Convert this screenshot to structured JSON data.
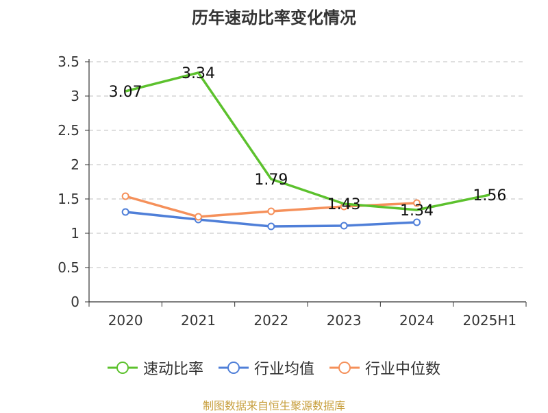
{
  "chart_data": {
    "type": "line",
    "title": "历年速动比率变化情况",
    "categories": [
      "2020",
      "2021",
      "2022",
      "2023",
      "2024",
      "2025H1"
    ],
    "series": [
      {
        "name": "速动比率",
        "color": "#5cc12d",
        "values": [
          3.07,
          3.34,
          1.79,
          1.43,
          1.34,
          1.56
        ],
        "labels": [
          "3.07",
          "3.34",
          "1.79",
          "1.43",
          "1.34",
          "1.56"
        ]
      },
      {
        "name": "行业均值",
        "color": "#4f7fd8",
        "values": [
          1.31,
          1.2,
          1.1,
          1.11,
          1.16,
          null
        ]
      },
      {
        "name": "行业中位数",
        "color": "#f5905a",
        "values": [
          1.54,
          1.24,
          1.32,
          1.39,
          1.44,
          null
        ]
      }
    ],
    "yticks": [
      "0",
      "0.5",
      "1",
      "1.5",
      "2",
      "2.5",
      "3",
      "3.5"
    ],
    "ylim": [
      0,
      3.5
    ],
    "grid": true,
    "legend_position": "bottom"
  },
  "footer": {
    "source": "制图数据来自恒生聚源数据库"
  }
}
